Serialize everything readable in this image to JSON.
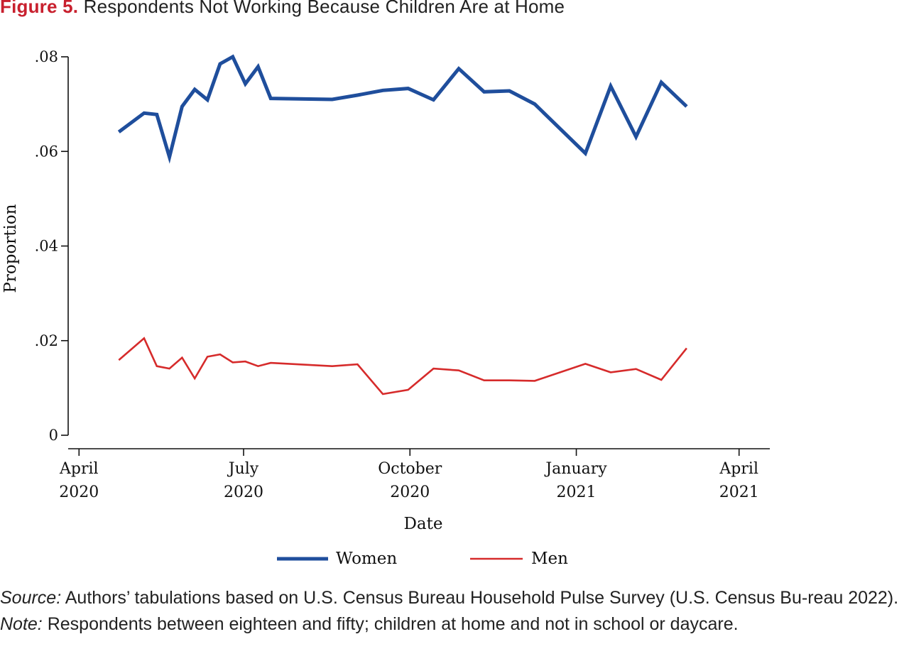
{
  "figure": {
    "label": "Figure 5.",
    "title": "Respondents Not Working Because Children Are at Home"
  },
  "chart_data": {
    "type": "line",
    "title": "Respondents Not Working Because Children Are at Home",
    "xlabel": "Date",
    "ylabel": "Proportion",
    "ylim": [
      0,
      0.08
    ],
    "xlim": [
      "2020-03-26",
      "2021-04-18"
    ],
    "grid": false,
    "legend_position": "bottom",
    "y_ticks": [
      {
        "value": 0,
        "label": "0"
      },
      {
        "value": 0.02,
        "label": ".02"
      },
      {
        "value": 0.04,
        "label": ".04"
      },
      {
        "value": 0.06,
        "label": ".06"
      },
      {
        "value": 0.08,
        "label": ".08"
      }
    ],
    "x_ticks": [
      {
        "date": "2020-04-01",
        "month": "April",
        "year": "2020"
      },
      {
        "date": "2020-07-01",
        "month": "July",
        "year": "2020"
      },
      {
        "date": "2020-10-01",
        "month": "October",
        "year": "2020"
      },
      {
        "date": "2021-01-01",
        "month": "January",
        "year": "2021"
      },
      {
        "date": "2021-04-01",
        "month": "April",
        "year": "2021"
      }
    ],
    "series": [
      {
        "name": "Women",
        "color": "#1f4e9c",
        "points": [
          {
            "x": "2020-04-23",
            "y": 0.0641
          },
          {
            "x": "2020-05-07",
            "y": 0.0681
          },
          {
            "x": "2020-05-14",
            "y": 0.0678
          },
          {
            "x": "2020-05-21",
            "y": 0.0588
          },
          {
            "x": "2020-05-28",
            "y": 0.0695
          },
          {
            "x": "2020-06-04",
            "y": 0.0731
          },
          {
            "x": "2020-06-11",
            "y": 0.0709
          },
          {
            "x": "2020-06-18",
            "y": 0.0785
          },
          {
            "x": "2020-06-25",
            "y": 0.08
          },
          {
            "x": "2020-07-02",
            "y": 0.0743
          },
          {
            "x": "2020-07-09",
            "y": 0.0779
          },
          {
            "x": "2020-07-16",
            "y": 0.0712
          },
          {
            "x": "2020-08-19",
            "y": 0.071
          },
          {
            "x": "2020-09-02",
            "y": 0.0719
          },
          {
            "x": "2020-09-16",
            "y": 0.0729
          },
          {
            "x": "2020-09-30",
            "y": 0.0733
          },
          {
            "x": "2020-10-14",
            "y": 0.0709
          },
          {
            "x": "2020-10-28",
            "y": 0.0775
          },
          {
            "x": "2020-11-11",
            "y": 0.0726
          },
          {
            "x": "2020-11-25",
            "y": 0.0728
          },
          {
            "x": "2020-12-09",
            "y": 0.07
          },
          {
            "x": "2021-01-06",
            "y": 0.0596
          },
          {
            "x": "2021-01-20",
            "y": 0.0738
          },
          {
            "x": "2021-02-03",
            "y": 0.0631
          },
          {
            "x": "2021-02-17",
            "y": 0.0746
          },
          {
            "x": "2021-03-03",
            "y": 0.0695
          }
        ]
      },
      {
        "name": "Men",
        "color": "#d62b2b",
        "points": [
          {
            "x": "2020-04-23",
            "y": 0.0159
          },
          {
            "x": "2020-05-07",
            "y": 0.0205
          },
          {
            "x": "2020-05-14",
            "y": 0.0146
          },
          {
            "x": "2020-05-21",
            "y": 0.0141
          },
          {
            "x": "2020-05-28",
            "y": 0.0164
          },
          {
            "x": "2020-06-04",
            "y": 0.012
          },
          {
            "x": "2020-06-11",
            "y": 0.0166
          },
          {
            "x": "2020-06-18",
            "y": 0.0171
          },
          {
            "x": "2020-06-25",
            "y": 0.0154
          },
          {
            "x": "2020-07-02",
            "y": 0.0156
          },
          {
            "x": "2020-07-09",
            "y": 0.0146
          },
          {
            "x": "2020-07-16",
            "y": 0.0153
          },
          {
            "x": "2020-08-19",
            "y": 0.0146
          },
          {
            "x": "2020-09-02",
            "y": 0.015
          },
          {
            "x": "2020-09-16",
            "y": 0.0087
          },
          {
            "x": "2020-09-30",
            "y": 0.0096
          },
          {
            "x": "2020-10-14",
            "y": 0.0141
          },
          {
            "x": "2020-10-28",
            "y": 0.0137
          },
          {
            "x": "2020-11-11",
            "y": 0.0116
          },
          {
            "x": "2020-11-25",
            "y": 0.0116
          },
          {
            "x": "2020-12-09",
            "y": 0.0115
          },
          {
            "x": "2021-01-06",
            "y": 0.0151
          },
          {
            "x": "2021-01-20",
            "y": 0.0133
          },
          {
            "x": "2021-02-03",
            "y": 0.014
          },
          {
            "x": "2021-02-17",
            "y": 0.0117
          },
          {
            "x": "2021-03-03",
            "y": 0.0184
          }
        ]
      }
    ]
  },
  "notes": {
    "source_label": "Source:",
    "source_text": " Authors’ tabulations based on U.S. Census Bureau Household Pulse Survey (U.S. Census Bu-reau 2022).",
    "note_label": "Note:",
    "note_text": " Respondents between eighteen and fifty; children at home and not in school or daycare."
  }
}
